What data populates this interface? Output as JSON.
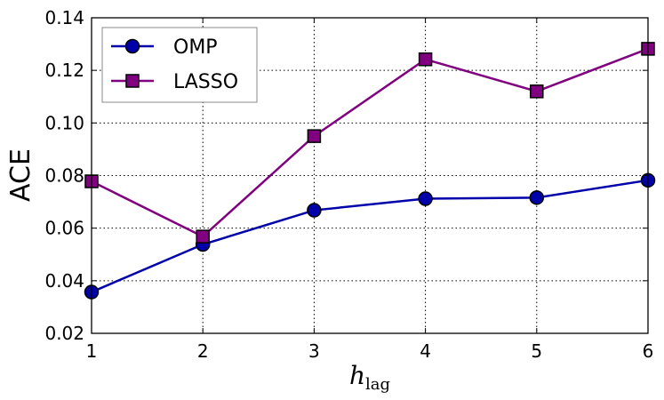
{
  "chart_data": {
    "type": "line",
    "xlabel_main": "h",
    "xlabel_sub": "lag",
    "ylabel": "ACE",
    "x": [
      1,
      2,
      3,
      4,
      5,
      6
    ],
    "xlim": [
      1,
      6
    ],
    "ylim": [
      0.02,
      0.14
    ],
    "xticks": [
      "1",
      "2",
      "3",
      "4",
      "5",
      "6"
    ],
    "yticks": [
      "0.02",
      "0.04",
      "0.06",
      "0.08",
      "0.10",
      "0.12",
      "0.14"
    ],
    "grid": true,
    "legend_position": "top-left",
    "series": [
      {
        "name": "OMP",
        "marker": "circle",
        "color": "#0000aa",
        "values": [
          0.0357,
          0.0538,
          0.0668,
          0.0712,
          0.0716,
          0.0782
        ]
      },
      {
        "name": "LASSO",
        "marker": "square",
        "color": "#800080",
        "values": [
          0.0778,
          0.0568,
          0.095,
          0.1242,
          0.112,
          0.1282
        ]
      }
    ]
  }
}
